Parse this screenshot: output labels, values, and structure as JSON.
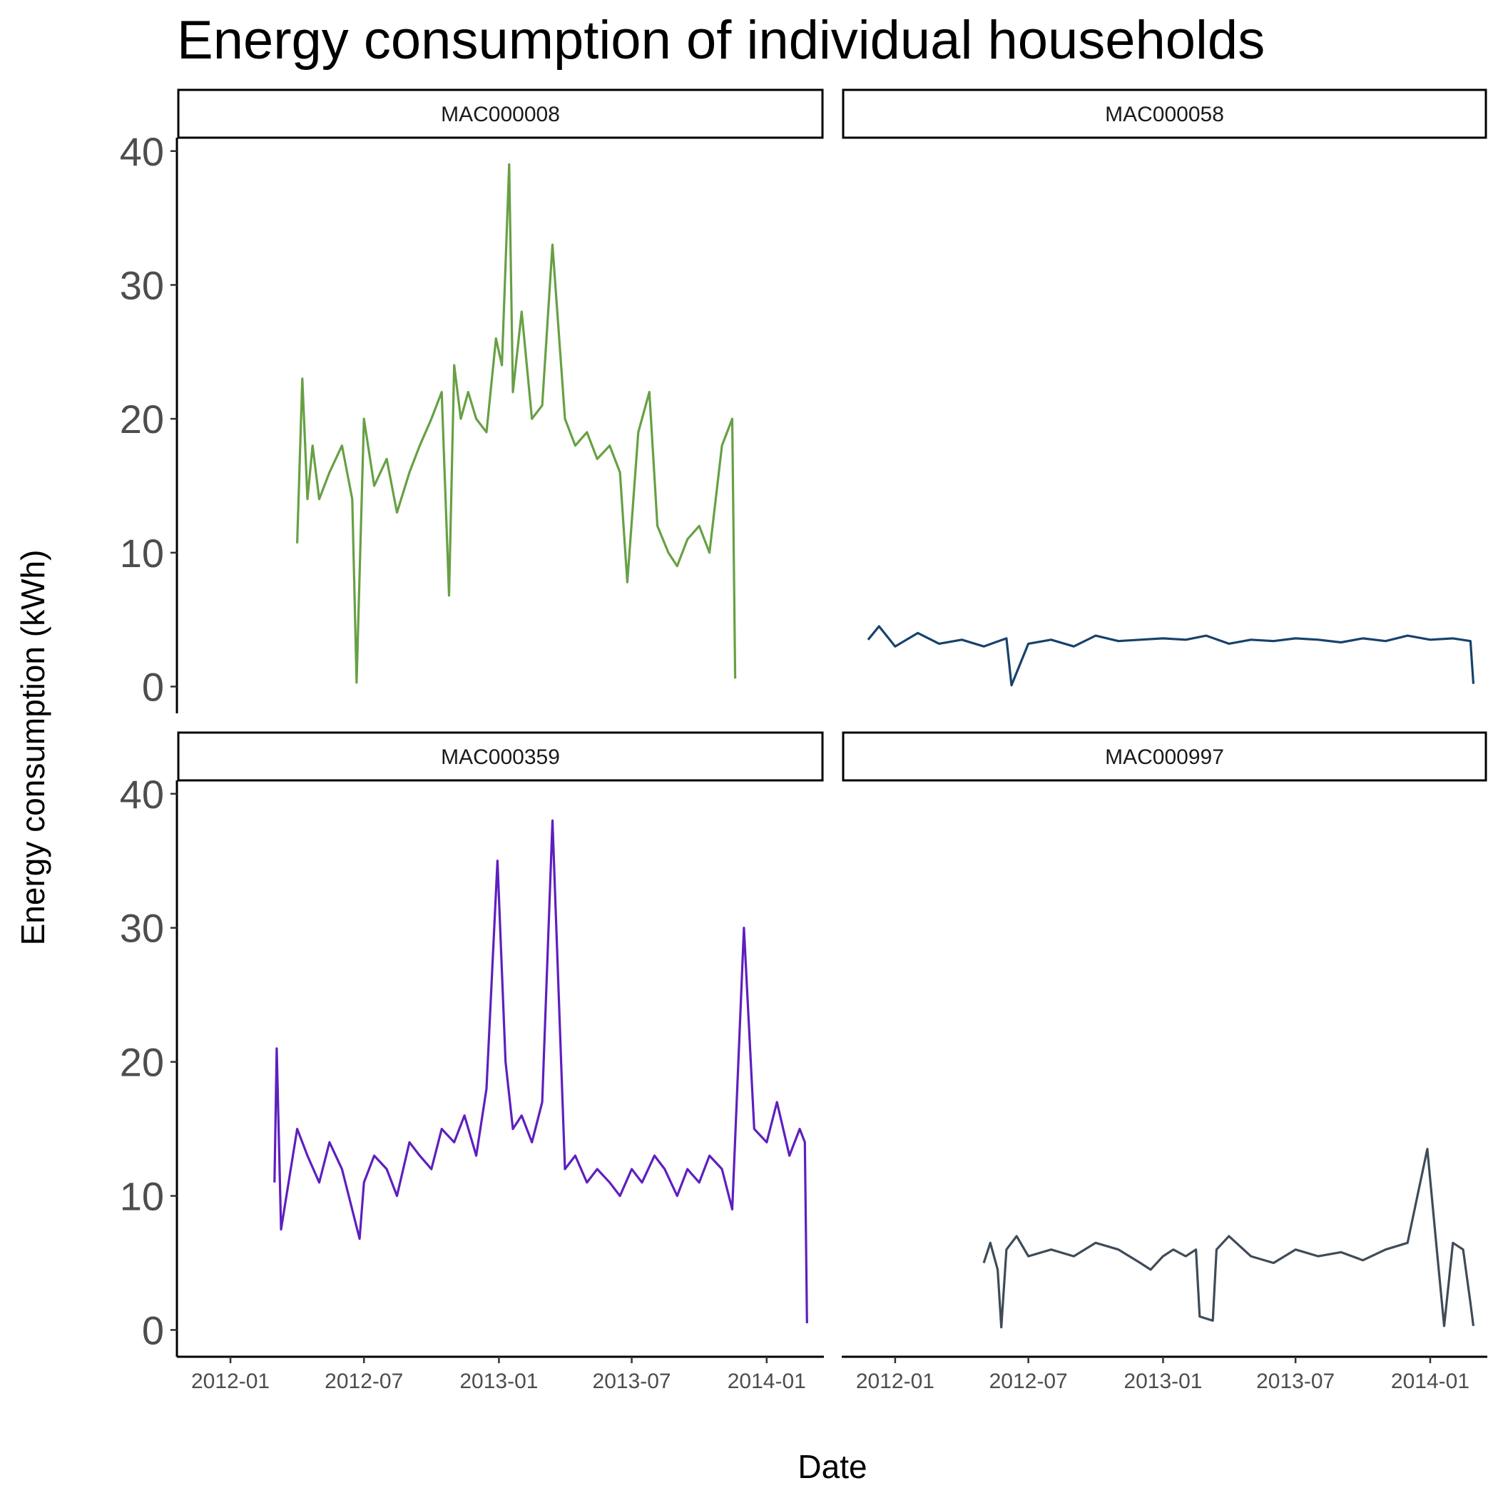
{
  "chart_data": {
    "type": "line",
    "title": "Energy consumption of individual households",
    "xlabel": "Date",
    "ylabel": "Energy consumption (kWh)",
    "facet_layout": "2x2",
    "x_tick_labels": [
      "2012-01",
      "2012-07",
      "2013-01",
      "2013-07",
      "2014-01"
    ],
    "x_ticks": [
      "2012-01-01",
      "2012-07-01",
      "2013-01-01",
      "2013-07-01",
      "2014-01-01"
    ],
    "xlim": [
      "2011-10-20",
      "2014-03-20"
    ],
    "y_ticks": [
      0,
      10,
      20,
      30,
      40
    ],
    "ylim": [
      -2,
      41
    ],
    "grid": false,
    "legend": "none",
    "panels": [
      {
        "name": "MAC000008",
        "color": "#67a044",
        "series": {
          "x": [
            "2012-04-01",
            "2012-04-08",
            "2012-04-15",
            "2012-04-22",
            "2012-05-01",
            "2012-05-15",
            "2012-06-01",
            "2012-06-15",
            "2012-06-21",
            "2012-07-01",
            "2012-07-15",
            "2012-08-01",
            "2012-08-15",
            "2012-09-01",
            "2012-09-15",
            "2012-10-01",
            "2012-10-15",
            "2012-10-25",
            "2012-11-01",
            "2012-11-10",
            "2012-11-20",
            "2012-12-01",
            "2012-12-15",
            "2012-12-28",
            "2013-01-05",
            "2013-01-15",
            "2013-01-20",
            "2013-02-01",
            "2013-02-15",
            "2013-03-01",
            "2013-03-15",
            "2013-04-01",
            "2013-04-15",
            "2013-05-01",
            "2013-05-15",
            "2013-06-01",
            "2013-06-15",
            "2013-06-25",
            "2013-07-10",
            "2013-07-25",
            "2013-08-05",
            "2013-08-20",
            "2013-09-01",
            "2013-09-15",
            "2013-10-01",
            "2013-10-15",
            "2013-11-01",
            "2013-11-15",
            "2013-11-19"
          ],
          "y": [
            10.7,
            23.0,
            14.0,
            18.0,
            14.0,
            16.0,
            18.0,
            14.0,
            0.3,
            20.0,
            15.0,
            17.0,
            13.0,
            16.0,
            18.0,
            20.0,
            22.0,
            6.8,
            24.0,
            20.0,
            22.0,
            20.0,
            19.0,
            26.0,
            24.0,
            39.0,
            22.0,
            28.0,
            20.0,
            21.0,
            33.0,
            20.0,
            18.0,
            19.0,
            17.0,
            18.0,
            16.0,
            7.8,
            19.0,
            22.0,
            12.0,
            10.0,
            9.0,
            11.0,
            12.0,
            10.0,
            18.0,
            20.0,
            0.6
          ]
        }
      },
      {
        "name": "MAC000058",
        "color": "#17426d",
        "series": {
          "x": [
            "2011-11-25",
            "2011-12-10",
            "2012-01-01",
            "2012-02-01",
            "2012-03-01",
            "2012-04-01",
            "2012-05-01",
            "2012-06-01",
            "2012-06-08",
            "2012-07-01",
            "2012-08-01",
            "2012-09-01",
            "2012-10-01",
            "2012-11-01",
            "2012-12-01",
            "2013-01-01",
            "2013-02-01",
            "2013-03-01",
            "2013-04-01",
            "2013-05-01",
            "2013-06-01",
            "2013-07-01",
            "2013-08-01",
            "2013-09-01",
            "2013-10-01",
            "2013-11-01",
            "2013-12-01",
            "2014-01-01",
            "2014-02-01",
            "2014-02-25",
            "2014-03-01"
          ],
          "y": [
            3.5,
            4.5,
            3.0,
            4.0,
            3.2,
            3.5,
            3.0,
            3.6,
            0.1,
            3.2,
            3.5,
            3.0,
            3.8,
            3.4,
            3.5,
            3.6,
            3.5,
            3.8,
            3.2,
            3.5,
            3.4,
            3.6,
            3.5,
            3.3,
            3.6,
            3.4,
            3.8,
            3.5,
            3.6,
            3.4,
            0.2
          ]
        }
      },
      {
        "name": "MAC000359",
        "color": "#5e1fbf",
        "series": {
          "x": [
            "2012-03-01",
            "2012-03-04",
            "2012-03-10",
            "2012-04-01",
            "2012-04-15",
            "2012-05-01",
            "2012-05-15",
            "2012-06-01",
            "2012-06-25",
            "2012-07-01",
            "2012-07-15",
            "2012-08-01",
            "2012-08-15",
            "2012-09-01",
            "2012-09-15",
            "2012-10-01",
            "2012-10-15",
            "2012-11-01",
            "2012-11-15",
            "2012-12-01",
            "2012-12-15",
            "2012-12-30",
            "2013-01-10",
            "2013-01-20",
            "2013-02-01",
            "2013-02-15",
            "2013-03-01",
            "2013-03-15",
            "2013-04-01",
            "2013-04-15",
            "2013-05-01",
            "2013-05-15",
            "2013-06-01",
            "2013-06-15",
            "2013-07-01",
            "2013-07-15",
            "2013-08-01",
            "2013-08-15",
            "2013-09-01",
            "2013-09-15",
            "2013-10-01",
            "2013-10-15",
            "2013-11-01",
            "2013-11-15",
            "2013-12-01",
            "2013-12-15",
            "2014-01-01",
            "2014-01-15",
            "2014-02-01",
            "2014-02-15",
            "2014-02-22",
            "2014-02-25"
          ],
          "y": [
            11.0,
            21.0,
            7.5,
            15.0,
            13.0,
            11.0,
            14.0,
            12.0,
            6.8,
            11.0,
            13.0,
            12.0,
            10.0,
            14.0,
            13.0,
            12.0,
            15.0,
            14.0,
            16.0,
            13.0,
            18.0,
            35.0,
            20.0,
            15.0,
            16.0,
            14.0,
            17.0,
            38.0,
            12.0,
            13.0,
            11.0,
            12.0,
            11.0,
            10.0,
            12.0,
            11.0,
            13.0,
            12.0,
            10.0,
            12.0,
            11.0,
            13.0,
            12.0,
            9.0,
            30.0,
            15.0,
            14.0,
            17.0,
            13.0,
            15.0,
            14.0,
            0.5
          ]
        }
      },
      {
        "name": "MAC000997",
        "color": "#3f4b58",
        "series": {
          "x": [
            "2012-05-01",
            "2012-05-10",
            "2012-05-20",
            "2012-05-25",
            "2012-06-01",
            "2012-06-15",
            "2012-07-01",
            "2012-08-01",
            "2012-09-01",
            "2012-10-01",
            "2012-11-01",
            "2012-12-01",
            "2012-12-15",
            "2013-01-01",
            "2013-01-15",
            "2013-02-01",
            "2013-02-15",
            "2013-02-20",
            "2013-03-10",
            "2013-03-15",
            "2013-04-01",
            "2013-05-01",
            "2013-06-01",
            "2013-07-01",
            "2013-08-01",
            "2013-09-01",
            "2013-10-01",
            "2013-11-01",
            "2013-12-01",
            "2013-12-28",
            "2014-01-10",
            "2014-01-20",
            "2014-02-01",
            "2014-02-15",
            "2014-02-25",
            "2014-03-01"
          ],
          "y": [
            5.0,
            6.5,
            4.5,
            0.2,
            6.0,
            7.0,
            5.5,
            6.0,
            5.5,
            6.5,
            6.0,
            5.0,
            4.5,
            5.5,
            6.0,
            5.5,
            6.0,
            1.0,
            0.7,
            6.0,
            7.0,
            5.5,
            5.0,
            6.0,
            5.5,
            5.8,
            5.2,
            6.0,
            6.5,
            13.5,
            6.0,
            0.3,
            6.5,
            6.0,
            2.0,
            0.3
          ]
        }
      }
    ]
  }
}
